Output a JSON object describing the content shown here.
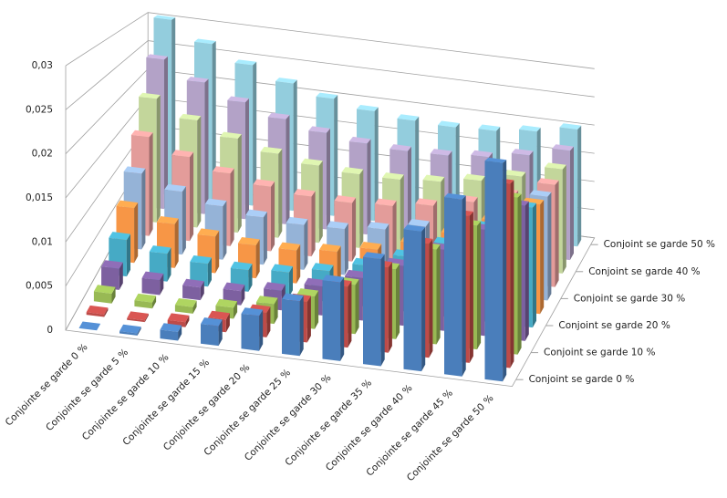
{
  "chart_data": {
    "type": "bar3d",
    "categories": [
      "Conjointe se garde 0 %",
      "Conjointe se garde 5 %",
      "Conjointe se garde 10 %",
      "Conjointe se garde 15 %",
      "Conjointe se garde 20 %",
      "Conjointe se garde 25 %",
      "Conjointe se garde 30 %",
      "Conjointe se garde 35 %",
      "Conjointe se garde 40 %",
      "Conjointe se garde 45 %",
      "Conjointe se garde 50 %"
    ],
    "series": [
      {
        "name": "Conjoint se garde 0 %",
        "color": "#4a7ebb",
        "values": [
          0,
          0.00025,
          0.001,
          0.00225,
          0.004,
          0.00625,
          0.009,
          0.01225,
          0.016,
          0.02025,
          0.025
        ]
      },
      {
        "name": null,
        "color": "#be4b48",
        "values": [
          0.0003,
          0.0002,
          0.0006,
          0.0015,
          0.0029,
          0.0048,
          0.0072,
          0.0101,
          0.0135,
          0.0174,
          0.0218
        ]
      },
      {
        "name": "Conjoint se garde 10 %",
        "color": "#98b954",
        "values": [
          0.0012,
          0.00075,
          0.0008,
          0.00135,
          0.0024,
          0.00395,
          0.006,
          0.00855,
          0.0116,
          0.01515,
          0.0192
        ]
      },
      {
        "name": null,
        "color": "#7d60a0",
        "values": [
          0.0027,
          0.0019,
          0.0016,
          0.0018,
          0.0025,
          0.0037,
          0.0054,
          0.0076,
          0.0103,
          0.0135,
          0.0172
        ]
      },
      {
        "name": "Conjoint se garde 20 %",
        "color": "#46aac5",
        "values": [
          0.0048,
          0.00365,
          0.003,
          0.00285,
          0.0032,
          0.00405,
          0.0054,
          0.00725,
          0.0096,
          0.01245,
          0.0158
        ]
      },
      {
        "name": null,
        "color": "#f79646",
        "values": [
          0.0075,
          0.006,
          0.005,
          0.0045,
          0.0045,
          0.005,
          0.006,
          0.0075,
          0.0095,
          0.012,
          0.015
        ]
      },
      {
        "name": "Conjoint se garde 30 %",
        "color": "#95b3d7",
        "values": [
          0.0108,
          0.00895,
          0.0076,
          0.00675,
          0.0064,
          0.00655,
          0.0072,
          0.00835,
          0.01,
          0.01215,
          0.0148
        ]
      },
      {
        "name": null,
        "color": "#e39c9a",
        "values": [
          0.0147,
          0.0125,
          0.0108,
          0.0096,
          0.0089,
          0.0087,
          0.009,
          0.0098,
          0.0111,
          0.0129,
          0.0152
        ]
      },
      {
        "name": "Conjoint se garde 40 %",
        "color": "#c3d69b",
        "values": [
          0.0192,
          0.01665,
          0.0146,
          0.01305,
          0.012,
          0.01145,
          0.0114,
          0.01185,
          0.0128,
          0.01425,
          0.0162
        ]
      },
      {
        "name": null,
        "color": "#b3a2c7",
        "values": [
          0.0243,
          0.0214,
          0.019,
          0.0171,
          0.0157,
          0.0148,
          0.0144,
          0.0145,
          0.0151,
          0.0162,
          0.0178
        ]
      },
      {
        "name": "Conjoint se garde 50 %",
        "color": "#93cddd",
        "values": [
          0.03,
          0.02675,
          0.024,
          0.02175,
          0.02,
          0.01875,
          0.018,
          0.01775,
          0.018,
          0.01875,
          0.02
        ]
      }
    ],
    "ylim": [
      0,
      0.03
    ],
    "yticks": [
      0,
      {
        "value": 0.005,
        "label": "0,005"
      },
      {
        "value": 0.01,
        "label": "0,01"
      },
      {
        "value": 0.015,
        "label": "0,015"
      },
      {
        "value": 0.02,
        "label": "0,02"
      },
      {
        "value": 0.025,
        "label": "0,025"
      },
      {
        "value": 0.03,
        "label": "0,03"
      }
    ],
    "grid": true
  }
}
